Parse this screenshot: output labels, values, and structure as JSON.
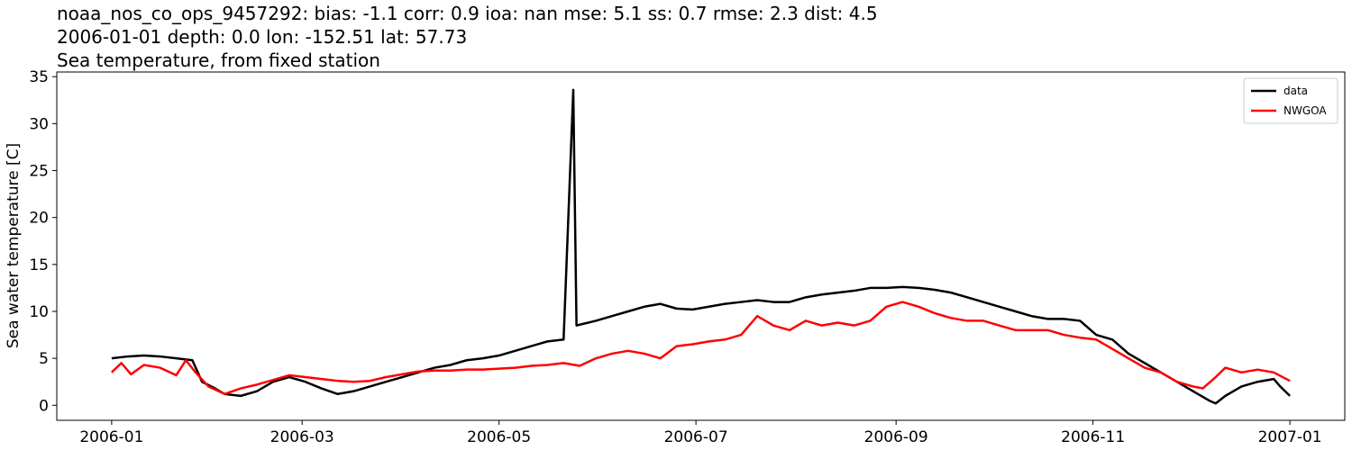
{
  "chart_data": {
    "type": "line",
    "title_lines": [
      "noaa_nos_co_ops_9457292: bias: -1.1  corr: 0.9  ioa: nan  mse: 5.1  ss: 0.7  rmse: 2.3  dist: 4.5",
      "2006-01-01 depth: 0.0 lon: -152.51 lat: 57.73",
      "Sea temperature, from fixed station"
    ],
    "ylabel": "Sea water temperature [C]",
    "xlim": [
      -17,
      382
    ],
    "ylim": [
      -1.6,
      35.5
    ],
    "xticks": [
      {
        "value": 0,
        "label": "2006-01"
      },
      {
        "value": 59,
        "label": "2006-03"
      },
      {
        "value": 120,
        "label": "2006-05"
      },
      {
        "value": 181,
        "label": "2006-07"
      },
      {
        "value": 243,
        "label": "2006-09"
      },
      {
        "value": 304,
        "label": "2006-11"
      },
      {
        "value": 365,
        "label": "2007-01"
      }
    ],
    "yticks": [
      0,
      5,
      10,
      15,
      20,
      25,
      30,
      35
    ],
    "legend": "upper right",
    "series": [
      {
        "name": "data",
        "color": "#000000",
        "x": [
          0,
          5,
          10,
          15,
          20,
          25,
          28,
          32,
          35,
          40,
          45,
          50,
          55,
          60,
          65,
          70,
          75,
          80,
          85,
          90,
          95,
          100,
          105,
          110,
          115,
          120,
          125,
          130,
          135,
          140,
          143,
          144,
          150,
          155,
          160,
          165,
          170,
          175,
          180,
          185,
          190,
          195,
          200,
          205,
          210,
          215,
          220,
          225,
          230,
          235,
          240,
          245,
          250,
          255,
          260,
          265,
          270,
          275,
          280,
          285,
          290,
          295,
          300,
          305,
          310,
          315,
          320,
          325,
          330,
          335,
          340,
          342,
          345,
          350,
          355,
          360,
          362,
          365
        ],
        "values": [
          5.0,
          5.2,
          5.3,
          5.2,
          5.0,
          4.8,
          2.5,
          1.8,
          1.2,
          1.0,
          1.5,
          2.5,
          3.0,
          2.5,
          1.8,
          1.2,
          1.5,
          2.0,
          2.5,
          3.0,
          3.5,
          4.0,
          4.3,
          4.8,
          5.0,
          5.3,
          5.8,
          6.3,
          6.8,
          7.0,
          33.6,
          8.5,
          9.0,
          9.5,
          10.0,
          10.5,
          10.8,
          10.3,
          10.2,
          10.5,
          10.8,
          11.0,
          11.2,
          11.0,
          11.0,
          11.5,
          11.8,
          12.0,
          12.2,
          12.5,
          12.5,
          12.6,
          12.5,
          12.3,
          12.0,
          11.5,
          11.0,
          10.5,
          10.0,
          9.5,
          9.2,
          9.2,
          9.0,
          7.5,
          7.0,
          5.5,
          4.5,
          3.5,
          2.5,
          1.5,
          0.5,
          0.2,
          1.0,
          2.0,
          2.5,
          2.8,
          2.0,
          1.0
        ]
      },
      {
        "name": "NWGOA",
        "color": "#ff0000",
        "x": [
          0,
          3,
          6,
          10,
          15,
          20,
          23,
          26,
          30,
          35,
          40,
          45,
          50,
          55,
          60,
          65,
          70,
          75,
          80,
          85,
          90,
          95,
          100,
          105,
          110,
          115,
          120,
          125,
          130,
          135,
          140,
          145,
          150,
          155,
          160,
          165,
          170,
          175,
          180,
          185,
          190,
          195,
          200,
          205,
          210,
          215,
          220,
          225,
          230,
          235,
          240,
          245,
          250,
          255,
          260,
          265,
          270,
          275,
          280,
          285,
          290,
          295,
          300,
          305,
          310,
          315,
          320,
          325,
          330,
          335,
          338,
          342,
          345,
          350,
          355,
          360,
          365
        ],
        "values": [
          3.5,
          4.5,
          3.3,
          4.3,
          4.0,
          3.2,
          4.8,
          3.5,
          2.0,
          1.2,
          1.8,
          2.2,
          2.7,
          3.2,
          3.0,
          2.8,
          2.6,
          2.5,
          2.6,
          3.0,
          3.3,
          3.6,
          3.7,
          3.7,
          3.8,
          3.8,
          3.9,
          4.0,
          4.2,
          4.3,
          4.5,
          4.2,
          5.0,
          5.5,
          5.8,
          5.5,
          5.0,
          6.3,
          6.5,
          6.8,
          7.0,
          7.5,
          9.5,
          8.5,
          8.0,
          9.0,
          8.5,
          8.8,
          8.5,
          9.0,
          10.5,
          11.0,
          10.5,
          9.8,
          9.3,
          9.0,
          9.0,
          8.5,
          8.0,
          8.0,
          8.0,
          7.5,
          7.2,
          7.0,
          6.0,
          5.0,
          4.0,
          3.5,
          2.5,
          2.0,
          1.8,
          3.0,
          4.0,
          3.5,
          3.8,
          3.5,
          2.6
        ]
      }
    ]
  }
}
